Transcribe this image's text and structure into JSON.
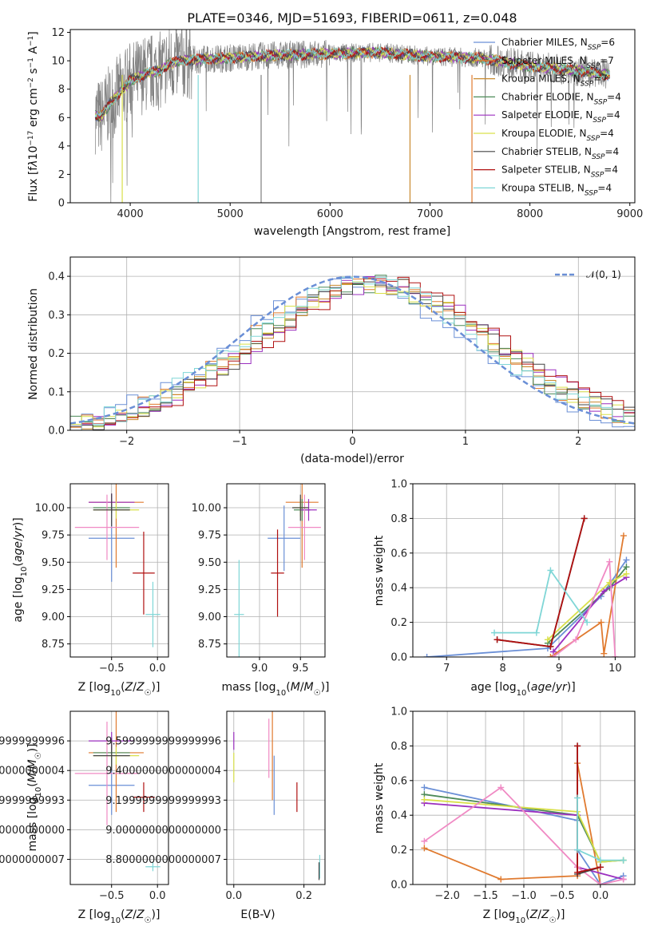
{
  "figure": {
    "title": "PLATE=0346, MJD=51693, FIBERID=0611, z=0.048"
  },
  "legend_entries": [
    {
      "label": "Chabrier MILES, N_SSP=6",
      "color": "#6a8fd6"
    },
    {
      "label": "Salpeter MILES, N_SSP=7",
      "color": "#e07a2f"
    },
    {
      "label": "Kroupa MILES, N_SSP=7",
      "color": "#c98a2e"
    },
    {
      "label": "Chabrier ELODIE, N_SSP=4",
      "color": "#4c8a58"
    },
    {
      "label": "Salpeter ELODIE, N_SSP=4",
      "color": "#9b2fbf"
    },
    {
      "label": "Kroupa ELODIE, N_SSP=4",
      "color": "#d9e04a"
    },
    {
      "label": "Chabrier STELIB, N_SSP=4",
      "color": "#444444"
    },
    {
      "label": "Salpeter STELIB, N_SSP=4",
      "color": "#b01010"
    },
    {
      "label": "Kroupa STELIB, N_SSP=4",
      "color": "#7fd6d6"
    }
  ],
  "chart_data": [
    {
      "type": "line",
      "title": "PLATE=0346, MJD=51693, FIBERID=0611, z=0.048",
      "xlabel": "wavelength [Angstrom, rest frame]",
      "ylabel": "Flux [f_λ 10^-17 erg cm^-2 s^-1 A^-1]",
      "xlim": [
        3400,
        9050
      ],
      "ylim": [
        0,
        12.2
      ],
      "xticks": [
        4000,
        5000,
        6000,
        7000,
        8000,
        9000
      ],
      "yticks": [
        0,
        2,
        4,
        6,
        8,
        10,
        12
      ],
      "legend_position": "upper right",
      "data_color": "#808080",
      "data_range": [
        3650,
        8800
      ],
      "spectrum_profile": [
        [
          3650,
          6.2
        ],
        [
          3700,
          6.0
        ],
        [
          3800,
          7.0
        ],
        [
          3900,
          7.8
        ],
        [
          4000,
          8.6
        ],
        [
          4100,
          8.9
        ],
        [
          4200,
          9.2
        ],
        [
          4300,
          9.3
        ],
        [
          4400,
          9.8
        ],
        [
          4500,
          10.0
        ],
        [
          4700,
          10.1
        ],
        [
          5000,
          10.2
        ],
        [
          5200,
          10.3
        ],
        [
          5500,
          10.4
        ],
        [
          6000,
          10.5
        ],
        [
          6500,
          10.6
        ],
        [
          7000,
          10.3
        ],
        [
          7500,
          10.2
        ],
        [
          8000,
          9.6
        ],
        [
          8500,
          9.3
        ],
        [
          8800,
          9.0
        ]
      ]
    },
    {
      "type": "histogram",
      "xlabel": "(data-model)/error",
      "ylabel": "Normed distribution",
      "xlim": [
        -2.5,
        2.5
      ],
      "ylim": [
        0,
        0.45
      ],
      "xticks": [
        -2,
        -1,
        0,
        1,
        2
      ],
      "yticks": [
        0.0,
        0.1,
        0.2,
        0.3,
        0.4
      ],
      "grid": true,
      "reference_curve": {
        "label": "𝒩(0, 1)",
        "mean": 0,
        "sigma": 1,
        "color": "#6a8fd6"
      },
      "bin_width": 0.1,
      "series_shifts": [
        0.0,
        0.12,
        0.2,
        0.15,
        0.25,
        0.18,
        0.22,
        0.3,
        0.1
      ]
    },
    {
      "type": "scatter_errorbar",
      "xlabel": "Z [log10(Z/Z☉)]",
      "ylabel": "age [log10(age/yr)]",
      "xlim": [
        -0.95,
        0.12
      ],
      "ylim": [
        8.63,
        10.22
      ],
      "xticks": [
        -0.5,
        0.0
      ],
      "yticks": [
        8.75,
        9.0,
        9.25,
        9.5,
        9.75,
        10.0
      ],
      "grid": true,
      "points": [
        {
          "color": "#6a8fd6",
          "x": -0.5,
          "y": 9.72,
          "xerr": 0.25,
          "yerr": 0.4
        },
        {
          "color": "#e07a2f",
          "x": -0.45,
          "y": 10.05,
          "xerr": 0.3,
          "yerr": 0.6
        },
        {
          "color": "#4c8a58",
          "x": -0.5,
          "y": 10.0,
          "xerr": 0.2,
          "yerr": 0.05
        },
        {
          "color": "#9b2fbf",
          "x": -0.5,
          "y": 10.05,
          "xerr": 0.25,
          "yerr": 0.08
        },
        {
          "color": "#d9e04a",
          "x": -0.45,
          "y": 9.98,
          "xerr": 0.25,
          "yerr": 0.08
        },
        {
          "color": "#f08ac4",
          "x": -0.55,
          "y": 9.82,
          "xerr": 0.35,
          "yerr": 0.3
        },
        {
          "color": "#444444",
          "x": -0.5,
          "y": 9.98,
          "xerr": 0.2,
          "yerr": 0.15
        },
        {
          "color": "#b01010",
          "x": -0.15,
          "y": 9.4,
          "xerr": 0.12,
          "yerr": 0.38
        },
        {
          "color": "#7fd6d6",
          "x": -0.05,
          "y": 9.02,
          "xerr": 0.08,
          "yerr": 0.3
        }
      ]
    },
    {
      "type": "scatter_errorbar",
      "xlabel": "mass [log10(M/M☉)]",
      "ylabel": "",
      "xlim": [
        8.6,
        9.8
      ],
      "ylim": [
        8.63,
        10.22
      ],
      "xticks": [
        9.0,
        9.5
      ],
      "yticks": [
        8.75,
        9.0,
        9.25,
        9.5,
        9.75,
        10.0
      ],
      "grid": true,
      "points": [
        {
          "color": "#6a8fd6",
          "x": 9.3,
          "y": 9.72,
          "xerr": 0.2,
          "yerr": 0.3
        },
        {
          "color": "#e07a2f",
          "x": 9.52,
          "y": 10.05,
          "xerr": 0.2,
          "yerr": 0.6
        },
        {
          "color": "#4c8a58",
          "x": 9.52,
          "y": 9.98,
          "xerr": 0.1,
          "yerr": 0.1
        },
        {
          "color": "#9b2fbf",
          "x": 9.6,
          "y": 9.98,
          "xerr": 0.1,
          "yerr": 0.1
        },
        {
          "color": "#d9e04a",
          "x": 9.5,
          "y": 10.0,
          "xerr": 0.08,
          "yerr": 0.08
        },
        {
          "color": "#f08ac4",
          "x": 9.55,
          "y": 9.82,
          "xerr": 0.2,
          "yerr": 0.3
        },
        {
          "color": "#444444",
          "x": 9.5,
          "y": 10.0,
          "xerr": 0.1,
          "yerr": 0.12
        },
        {
          "color": "#b01010",
          "x": 9.22,
          "y": 9.4,
          "xerr": 0.08,
          "yerr": 0.4
        },
        {
          "color": "#7fd6d6",
          "x": 8.75,
          "y": 9.02,
          "xerr": 0.06,
          "yerr": 0.5
        }
      ]
    },
    {
      "type": "line",
      "xlabel": "age [log10(age/yr)]",
      "ylabel": "mass weight",
      "xlim": [
        6.4,
        10.35
      ],
      "ylim": [
        0,
        1.0
      ],
      "xticks": [
        7,
        8,
        9,
        10
      ],
      "yticks": [
        0.0,
        0.2,
        0.4,
        0.6,
        0.8,
        1.0
      ],
      "grid": true,
      "series": [
        {
          "color": "#6a8fd6",
          "x": [
            6.65,
            8.8,
            9.75,
            10.2
          ],
          "y": [
            0.0,
            0.05,
            0.35,
            0.56
          ]
        },
        {
          "color": "#e07a2f",
          "x": [
            8.85,
            9.75,
            9.8,
            10.15
          ],
          "y": [
            0.0,
            0.2,
            0.02,
            0.7
          ]
        },
        {
          "color": "#4c8a58",
          "x": [
            8.8,
            9.9,
            10.2
          ],
          "y": [
            0.08,
            0.4,
            0.52
          ]
        },
        {
          "color": "#9b2fbf",
          "x": [
            8.9,
            9.8,
            10.2
          ],
          "y": [
            0.03,
            0.38,
            0.46
          ]
        },
        {
          "color": "#d9e04a",
          "x": [
            8.8,
            9.9,
            10.2
          ],
          "y": [
            0.1,
            0.43,
            0.48
          ]
        },
        {
          "color": "#f08ac4",
          "x": [
            8.9,
            9.3,
            9.9,
            10.0
          ],
          "y": [
            0.0,
            0.1,
            0.55,
            0.0
          ]
        },
        {
          "color": "#444444",
          "x": [
            7.9,
            8.85,
            9.45
          ],
          "y": [
            0.1,
            0.06,
            0.8
          ]
        },
        {
          "color": "#b01010",
          "x": [
            7.9,
            8.85,
            9.45
          ],
          "y": [
            0.1,
            0.06,
            0.8
          ]
        },
        {
          "color": "#7fd6d6",
          "x": [
            7.85,
            8.6,
            8.85,
            9.5
          ],
          "y": [
            0.14,
            0.14,
            0.5,
            0.2
          ]
        }
      ]
    },
    {
      "type": "scatter_errorbar",
      "xlabel": "Z [log10(Z/Z☉)]",
      "ylabel": "mass [log10(M/M☉)]",
      "xlim": [
        -0.95,
        0.12
      ],
      "ylim": [
        8.63,
        9.8
      ],
      "xticks": [
        -0.5,
        0.0
      ],
      "yticks": [
        8.8,
        9.0,
        9.2,
        9.4,
        9.6
      ],
      "grid": true,
      "points": [
        {
          "color": "#6a8fd6",
          "x": -0.5,
          "y": 9.3,
          "xerr": 0.25,
          "yerr": 0.2
        },
        {
          "color": "#e07a2f",
          "x": -0.45,
          "y": 9.52,
          "xerr": 0.3,
          "yerr": 0.4
        },
        {
          "color": "#4c8a58",
          "x": -0.5,
          "y": 9.52,
          "xerr": 0.2,
          "yerr": 0.1
        },
        {
          "color": "#9b2fbf",
          "x": -0.5,
          "y": 9.6,
          "xerr": 0.25,
          "yerr": 0.06
        },
        {
          "color": "#d9e04a",
          "x": -0.45,
          "y": 9.5,
          "xerr": 0.25,
          "yerr": 0.06
        },
        {
          "color": "#f08ac4",
          "x": -0.55,
          "y": 9.38,
          "xerr": 0.35,
          "yerr": 0.35
        },
        {
          "color": "#444444",
          "x": -0.5,
          "y": 9.5,
          "xerr": 0.2,
          "yerr": 0.1
        },
        {
          "color": "#b01010",
          "x": -0.15,
          "y": 9.22,
          "xerr": 0.12,
          "yerr": 0.1
        },
        {
          "color": "#7fd6d6",
          "x": -0.05,
          "y": 8.75,
          "xerr": 0.08,
          "yerr": 0.03
        }
      ]
    },
    {
      "type": "scatter_errorbar",
      "xlabel": "E(B-V)",
      "ylabel": "",
      "xlim": [
        -0.02,
        0.26
      ],
      "ylim": [
        8.63,
        9.8
      ],
      "xticks": [
        0.0,
        0.2
      ],
      "yticks": [
        8.8,
        9.0,
        9.2,
        9.4,
        9.6
      ],
      "grid": true,
      "points": [
        {
          "color": "#6a8fd6",
          "x": 0.115,
          "y": 9.3,
          "yerr": 0.2
        },
        {
          "color": "#e07a2f",
          "x": 0.11,
          "y": 9.5,
          "yerr": 0.3
        },
        {
          "color": "#9b2fbf",
          "x": 0.0,
          "y": 9.6,
          "yerr": 0.06
        },
        {
          "color": "#d9e04a",
          "x": 0.0,
          "y": 9.42,
          "yerr": 0.1
        },
        {
          "color": "#f08ac4",
          "x": 0.1,
          "y": 9.55,
          "yerr": 0.2
        },
        {
          "color": "#b01010",
          "x": 0.18,
          "y": 9.22,
          "yerr": 0.1
        },
        {
          "color": "#7fd6d6",
          "x": 0.245,
          "y": 8.75,
          "yerr": 0.08
        },
        {
          "color": "#444444",
          "x": 0.243,
          "y": 8.72,
          "yerr": 0.06
        }
      ]
    },
    {
      "type": "line",
      "xlabel": "Z [log10(Z/Z☉)]",
      "ylabel": "mass weight",
      "xlim": [
        -2.45,
        0.45
      ],
      "ylim": [
        0,
        1.0
      ],
      "xticks": [
        -2.0,
        -1.5,
        -1.0,
        -0.5,
        0.0
      ],
      "yticks": [
        0.0,
        0.2,
        0.4,
        0.6,
        0.8,
        1.0
      ],
      "grid": true,
      "series": [
        {
          "color": "#6a8fd6",
          "x": [
            -2.3,
            -0.3,
            -0.3,
            0.0,
            0.3
          ],
          "y": [
            0.56,
            0.37,
            0.2,
            0.0,
            0.05
          ]
        },
        {
          "color": "#e07a2f",
          "x": [
            -2.3,
            -1.3,
            -0.3,
            -0.3,
            0.0
          ],
          "y": [
            0.21,
            0.03,
            0.05,
            0.7,
            0.0
          ]
        },
        {
          "color": "#4c8a58",
          "x": [
            -2.3,
            -0.3,
            0.0,
            0.3
          ],
          "y": [
            0.52,
            0.4,
            0.13,
            0.14
          ]
        },
        {
          "color": "#9b2fbf",
          "x": [
            -2.3,
            -0.3,
            -0.3,
            0.3
          ],
          "y": [
            0.47,
            0.4,
            0.1,
            0.03
          ]
        },
        {
          "color": "#d9e04a",
          "x": [
            -2.3,
            -0.3,
            0.0,
            0.3
          ],
          "y": [
            0.49,
            0.42,
            0.13,
            0.14
          ]
        },
        {
          "color": "#f08ac4",
          "x": [
            -2.3,
            -1.3,
            -0.3,
            0.0,
            0.3
          ],
          "y": [
            0.25,
            0.56,
            0.1,
            0.0,
            0.03
          ]
        },
        {
          "color": "#444444",
          "x": [
            -0.3,
            -0.3,
            0.0
          ],
          "y": [
            0.8,
            0.06,
            0.1
          ]
        },
        {
          "color": "#b01010",
          "x": [
            -0.3,
            -0.3,
            0.0
          ],
          "y": [
            0.8,
            0.07,
            0.1
          ]
        },
        {
          "color": "#7fd6d6",
          "x": [
            -0.3,
            -0.3,
            0.0,
            0.3
          ],
          "y": [
            0.5,
            0.2,
            0.14,
            0.14
          ]
        }
      ]
    }
  ]
}
